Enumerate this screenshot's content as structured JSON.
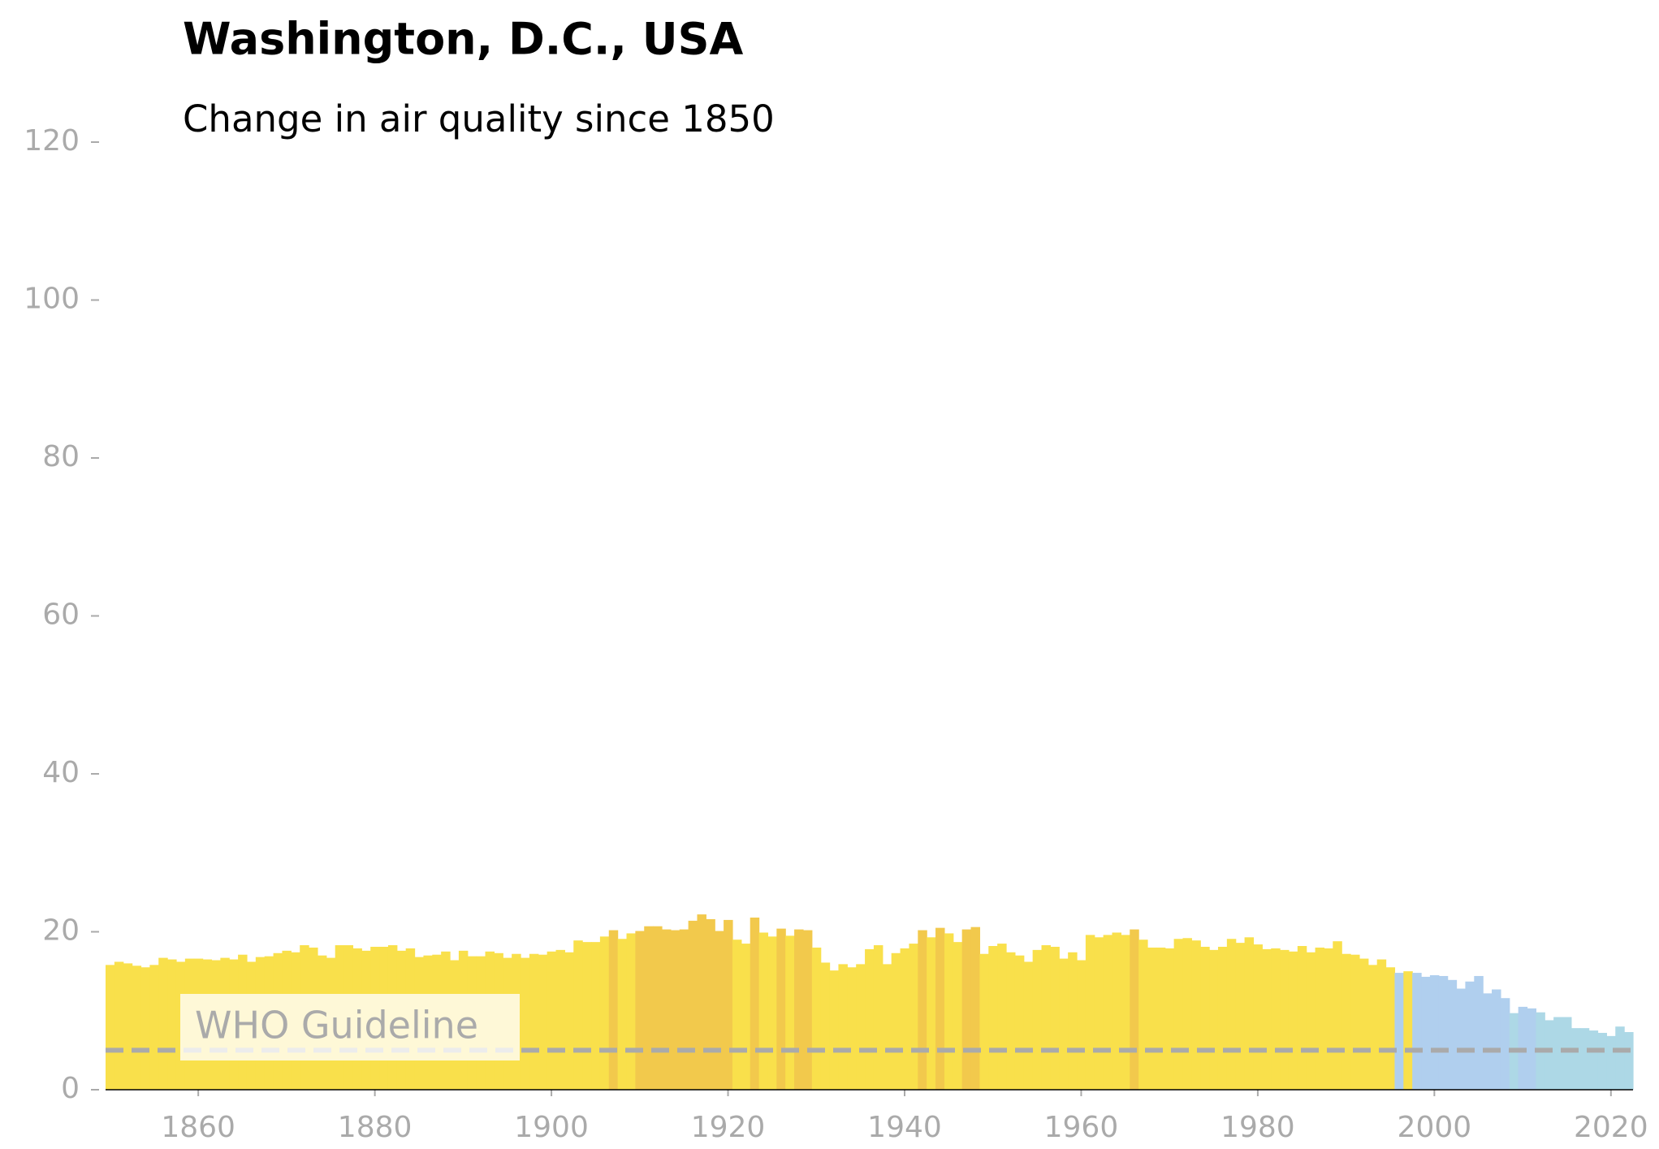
{
  "chart_data": {
    "type": "bar",
    "title": "Washington, D.C., USA",
    "subtitle": "Change in air quality since 1850",
    "x": [
      1850,
      1851,
      1852,
      1853,
      1854,
      1855,
      1856,
      1857,
      1858,
      1859,
      1860,
      1861,
      1862,
      1863,
      1864,
      1865,
      1866,
      1867,
      1868,
      1869,
      1870,
      1871,
      1872,
      1873,
      1874,
      1875,
      1876,
      1877,
      1878,
      1879,
      1880,
      1881,
      1882,
      1883,
      1884,
      1885,
      1886,
      1887,
      1888,
      1889,
      1890,
      1891,
      1892,
      1893,
      1894,
      1895,
      1896,
      1897,
      1898,
      1899,
      1900,
      1901,
      1902,
      1903,
      1904,
      1905,
      1906,
      1907,
      1908,
      1909,
      1910,
      1911,
      1912,
      1913,
      1914,
      1915,
      1916,
      1917,
      1918,
      1919,
      1920,
      1921,
      1922,
      1923,
      1924,
      1925,
      1926,
      1927,
      1928,
      1929,
      1930,
      1931,
      1932,
      1933,
      1934,
      1935,
      1936,
      1937,
      1938,
      1939,
      1940,
      1941,
      1942,
      1943,
      1944,
      1945,
      1946,
      1947,
      1948,
      1949,
      1950,
      1951,
      1952,
      1953,
      1954,
      1955,
      1956,
      1957,
      1958,
      1959,
      1960,
      1961,
      1962,
      1963,
      1964,
      1965,
      1966,
      1967,
      1968,
      1969,
      1970,
      1971,
      1972,
      1973,
      1974,
      1975,
      1976,
      1977,
      1978,
      1979,
      1980,
      1981,
      1982,
      1983,
      1984,
      1985,
      1986,
      1987,
      1988,
      1989,
      1990,
      1991,
      1992,
      1993,
      1994,
      1995,
      1996,
      1997,
      1998,
      1999,
      2000,
      2001,
      2002,
      2003,
      2004,
      2005,
      2006,
      2007,
      2008,
      2009,
      2010,
      2011,
      2012,
      2013,
      2014,
      2015,
      2016,
      2017,
      2018,
      2019,
      2020,
      2021,
      2022
    ],
    "values": [
      15.8,
      16.2,
      16.0,
      15.7,
      15.5,
      15.8,
      16.7,
      16.5,
      16.2,
      16.6,
      16.6,
      16.5,
      16.4,
      16.7,
      16.5,
      17.1,
      16.2,
      16.8,
      16.9,
      17.3,
      17.6,
      17.4,
      18.3,
      18.0,
      17.0,
      16.7,
      18.3,
      18.3,
      17.9,
      17.6,
      18.1,
      18.1,
      18.3,
      17.6,
      17.9,
      16.8,
      17.0,
      17.1,
      17.5,
      16.4,
      17.6,
      16.9,
      16.9,
      17.5,
      17.3,
      16.7,
      17.2,
      16.7,
      17.2,
      17.1,
      17.5,
      17.7,
      17.4,
      18.9,
      18.7,
      18.7,
      19.4,
      20.2,
      19.1,
      19.8,
      20.1,
      20.7,
      20.7,
      20.3,
      20.2,
      20.3,
      21.4,
      22.2,
      21.6,
      20.1,
      21.5,
      19.0,
      18.5,
      21.8,
      19.9,
      19.4,
      20.4,
      19.5,
      20.3,
      20.2,
      18.0,
      16.1,
      15.1,
      15.9,
      15.5,
      15.9,
      17.8,
      18.3,
      15.9,
      17.3,
      17.9,
      18.5,
      20.2,
      19.3,
      20.5,
      19.8,
      18.7,
      20.3,
      20.6,
      17.2,
      18.2,
      18.5,
      17.4,
      17.0,
      16.2,
      17.7,
      18.3,
      18.1,
      16.6,
      17.4,
      16.4,
      19.6,
      19.3,
      19.6,
      19.9,
      19.6,
      20.3,
      19.0,
      18.0,
      18.0,
      17.9,
      19.1,
      19.2,
      18.9,
      18.1,
      17.7,
      18.1,
      19.1,
      18.6,
      19.3,
      18.4,
      17.8,
      17.9,
      17.7,
      17.5,
      18.2,
      17.4,
      18.0,
      17.9,
      18.8,
      17.2,
      17.1,
      16.6,
      15.8,
      16.5,
      15.5,
      14.8,
      15.0,
      14.8,
      14.3,
      14.5,
      14.4,
      13.9,
      12.8,
      13.7,
      14.4,
      12.2,
      12.7,
      11.6,
      9.7,
      10.5,
      10.3,
      9.8,
      8.8,
      9.2,
      9.2,
      7.8,
      7.8,
      7.5,
      7.2,
      6.8,
      8.0,
      7.3
    ],
    "color_scale": [
      [
        0,
        "#add8e6"
      ],
      [
        10,
        "#b0cfee"
      ],
      [
        15,
        "#f9e04b"
      ],
      [
        20,
        "#f2c94c"
      ]
    ],
    "guideline": {
      "label": "WHO Guideline",
      "value": 5,
      "color": "#aaaaaa"
    },
    "xlim": [
      1849.5,
      2022.5
    ],
    "xticks": [
      1860,
      1880,
      1900,
      1920,
      1940,
      1960,
      1980,
      2000,
      2020
    ],
    "ylim": [
      0,
      120
    ],
    "yticks": [
      0,
      20,
      40,
      60,
      80,
      100,
      120
    ]
  }
}
